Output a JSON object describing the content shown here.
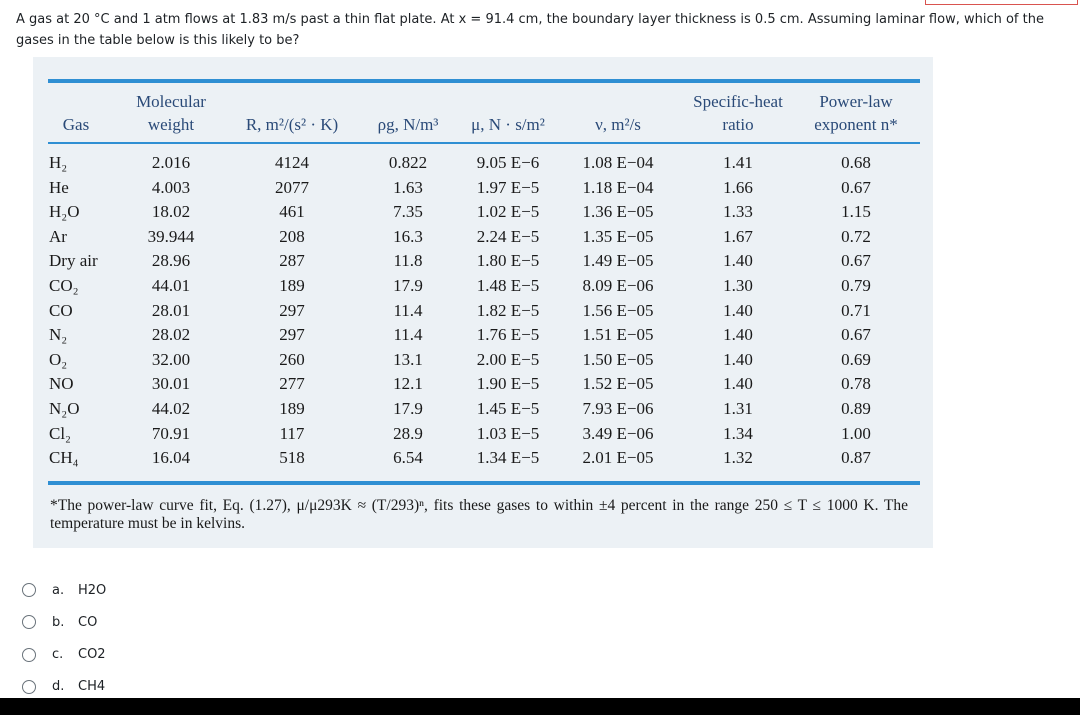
{
  "question": "A gas at 20 °C and 1 atm flows at 1.83 m/s past a thin flat plate. At x = 91.4 cm, the boundary layer thickness is 0.5 cm. Assuming laminar flow, which of the gases in the table below is this likely to be?",
  "table": {
    "header": [
      "Gas",
      "Molecular\nweight",
      "R, m²/(s² · K)",
      "ρg, N/m³",
      "μ, N · s/m²",
      "ν, m²/s",
      "Specific-heat\nratio",
      "Power-law\nexponent n*"
    ],
    "rows": [
      [
        "H₂",
        "2.016",
        "4124",
        "0.822",
        "9.05 E−6",
        "1.08 E−04",
        "1.41",
        "0.68"
      ],
      [
        "He",
        "4.003",
        "2077",
        "1.63",
        "1.97 E−5",
        "1.18 E−04",
        "1.66",
        "0.67"
      ],
      [
        "H₂O",
        "18.02",
        "461",
        "7.35",
        "1.02 E−5",
        "1.36 E−05",
        "1.33",
        "1.15"
      ],
      [
        "Ar",
        "39.944",
        "208",
        "16.3",
        "2.24 E−5",
        "1.35 E−05",
        "1.67",
        "0.72"
      ],
      [
        "Dry air",
        "28.96",
        "287",
        "11.8",
        "1.80 E−5",
        "1.49 E−05",
        "1.40",
        "0.67"
      ],
      [
        "CO₂",
        "44.01",
        "189",
        "17.9",
        "1.48 E−5",
        "8.09 E−06",
        "1.30",
        "0.79"
      ],
      [
        "CO",
        "28.01",
        "297",
        "11.4",
        "1.82 E−5",
        "1.56 E−05",
        "1.40",
        "0.71"
      ],
      [
        "N₂",
        "28.02",
        "297",
        "11.4",
        "1.76 E−5",
        "1.51 E−05",
        "1.40",
        "0.67"
      ],
      [
        "O₂",
        "32.00",
        "260",
        "13.1",
        "2.00 E−5",
        "1.50 E−05",
        "1.40",
        "0.69"
      ],
      [
        "NO",
        "30.01",
        "277",
        "12.1",
        "1.90 E−5",
        "1.52 E−05",
        "1.40",
        "0.78"
      ],
      [
        "N₂O",
        "44.02",
        "189",
        "17.9",
        "1.45 E−5",
        "7.93 E−06",
        "1.31",
        "0.89"
      ],
      [
        "Cl₂",
        "70.91",
        "117",
        "28.9",
        "1.03 E−5",
        "3.49 E−06",
        "1.34",
        "1.00"
      ],
      [
        "CH₄",
        "16.04",
        "518",
        "6.54",
        "1.34 E−5",
        "2.01 E−05",
        "1.32",
        "0.87"
      ]
    ],
    "footnote": "*The power-law curve fit, Eq. (1.27), μ/μ293K ≈ (T/293)ⁿ, fits these gases to within ±4 percent in the range 250 ≤ T ≤ 1000 K. The temperature must be in kelvins."
  },
  "options": [
    {
      "letter": "a.",
      "text": "H2O"
    },
    {
      "letter": "b.",
      "text": "CO"
    },
    {
      "letter": "c.",
      "text": "CO2"
    },
    {
      "letter": "d.",
      "text": "CH4"
    }
  ]
}
